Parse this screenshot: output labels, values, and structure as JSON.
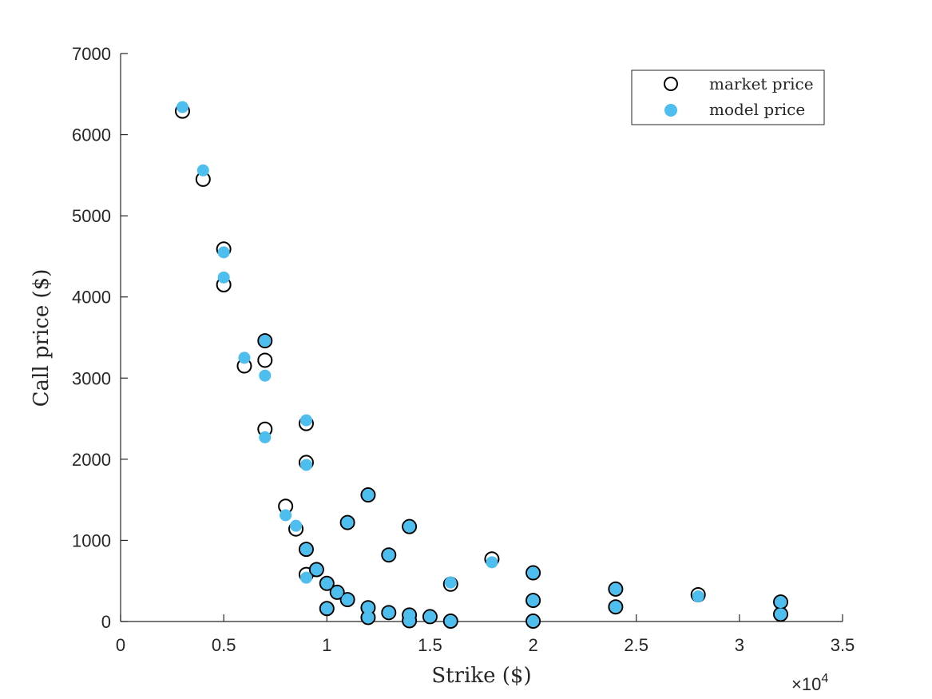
{
  "chart_data": {
    "type": "scatter",
    "xlabel": "Strike ($)",
    "ylabel": "Call price ($)",
    "xlim": [
      0,
      35000
    ],
    "ylim": [
      0,
      7000
    ],
    "x_ticks": [
      0,
      5000,
      10000,
      15000,
      20000,
      25000,
      30000,
      35000
    ],
    "x_tick_labels": [
      "0",
      "0.5",
      "1",
      "1.5",
      "2",
      "2.5",
      "3",
      "3.5"
    ],
    "y_ticks": [
      0,
      1000,
      2000,
      3000,
      4000,
      5000,
      6000,
      7000
    ],
    "y_tick_labels": [
      "0",
      "1000",
      "2000",
      "3000",
      "4000",
      "5000",
      "6000",
      "7000"
    ],
    "x_exponent_label": "×10",
    "x_exponent_power": "4",
    "grid": false,
    "legend_position": "top-right",
    "series": [
      {
        "name": "market price",
        "marker": "open-circle",
        "color": "#000000",
        "points": [
          [
            3000,
            6290
          ],
          [
            4000,
            5450
          ],
          [
            5000,
            4590
          ],
          [
            5000,
            4150
          ],
          [
            6000,
            3150
          ],
          [
            7000,
            3460
          ],
          [
            7000,
            3220
          ],
          [
            7000,
            2370
          ],
          [
            8000,
            1420
          ],
          [
            8500,
            1140
          ],
          [
            9000,
            2440
          ],
          [
            9000,
            1960
          ],
          [
            9000,
            890
          ],
          [
            9000,
            580
          ],
          [
            9500,
            640
          ],
          [
            10000,
            470
          ],
          [
            10000,
            160
          ],
          [
            10500,
            360
          ],
          [
            11000,
            1220
          ],
          [
            11000,
            270
          ],
          [
            12000,
            1560
          ],
          [
            12000,
            170
          ],
          [
            12000,
            50
          ],
          [
            13000,
            820
          ],
          [
            13000,
            110
          ],
          [
            14000,
            1170
          ],
          [
            14000,
            80
          ],
          [
            14000,
            10
          ],
          [
            15000,
            60
          ],
          [
            16000,
            460
          ],
          [
            16000,
            5
          ],
          [
            18000,
            770
          ],
          [
            20000,
            600
          ],
          [
            20000,
            260
          ],
          [
            20000,
            5
          ],
          [
            24000,
            400
          ],
          [
            24000,
            180
          ],
          [
            28000,
            330
          ],
          [
            32000,
            240
          ],
          [
            32000,
            90
          ]
        ]
      },
      {
        "name": "model price",
        "marker": "filled-circle",
        "color": "#4DBEEE",
        "points": [
          [
            3000,
            6340
          ],
          [
            4000,
            5560
          ],
          [
            5000,
            4550
          ],
          [
            5000,
            4240
          ],
          [
            6000,
            3250
          ],
          [
            7000,
            3460
          ],
          [
            7000,
            3030
          ],
          [
            7000,
            2270
          ],
          [
            8000,
            1310
          ],
          [
            8500,
            1180
          ],
          [
            9000,
            2480
          ],
          [
            9000,
            1930
          ],
          [
            9000,
            890
          ],
          [
            9000,
            540
          ],
          [
            9500,
            640
          ],
          [
            10000,
            470
          ],
          [
            10000,
            160
          ],
          [
            10500,
            360
          ],
          [
            11000,
            1220
          ],
          [
            11000,
            270
          ],
          [
            12000,
            1560
          ],
          [
            12000,
            170
          ],
          [
            12000,
            50
          ],
          [
            13000,
            820
          ],
          [
            13000,
            110
          ],
          [
            14000,
            1170
          ],
          [
            14000,
            80
          ],
          [
            14000,
            10
          ],
          [
            15000,
            60
          ],
          [
            16000,
            480
          ],
          [
            16000,
            5
          ],
          [
            18000,
            730
          ],
          [
            20000,
            600
          ],
          [
            20000,
            260
          ],
          [
            20000,
            5
          ],
          [
            24000,
            400
          ],
          [
            24000,
            180
          ],
          [
            28000,
            310
          ],
          [
            32000,
            240
          ],
          [
            32000,
            90
          ]
        ]
      }
    ]
  },
  "colors": {
    "axis": "#262626",
    "market_edge": "#000000",
    "model_fill": "#4DBEEE"
  }
}
